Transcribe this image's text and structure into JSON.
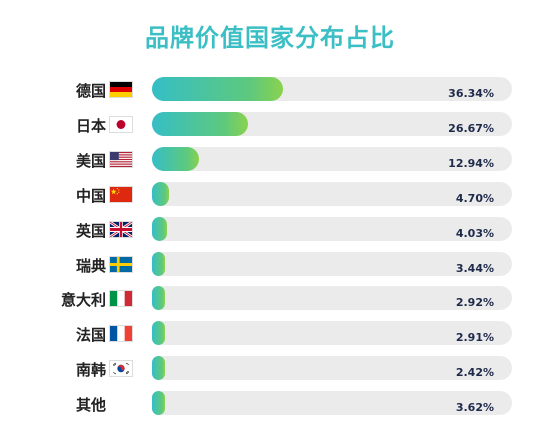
{
  "chart_data": {
    "type": "bar",
    "orientation": "horizontal",
    "title": "品牌价值国家分布占比",
    "xlim": [
      0,
      100
    ],
    "unit": "%",
    "categories": [
      "德国",
      "日本",
      "美国",
      "中国",
      "英国",
      "瑞典",
      "意大利",
      "法国",
      "南韩",
      "其他"
    ],
    "values": [
      36.34,
      26.67,
      12.94,
      4.7,
      4.03,
      3.44,
      2.92,
      2.91,
      2.42,
      3.62
    ],
    "value_labels": [
      "36.34%",
      "26.67%",
      "12.94%",
      "4.70%",
      "4.03%",
      "3.44%",
      "2.92%",
      "2.91%",
      "2.42%",
      "3.62%"
    ],
    "flags": [
      "germany-flag",
      "japan-flag",
      "usa-flag",
      "china-flag",
      "uk-flag",
      "sweden-flag",
      "italy-flag",
      "france-flag",
      "korea-flag",
      ""
    ],
    "colors": {
      "title": "#3bbfc4",
      "bar_start": "#35bec6",
      "bar_end": "#8ad24e",
      "track": "#ebebeb"
    }
  }
}
